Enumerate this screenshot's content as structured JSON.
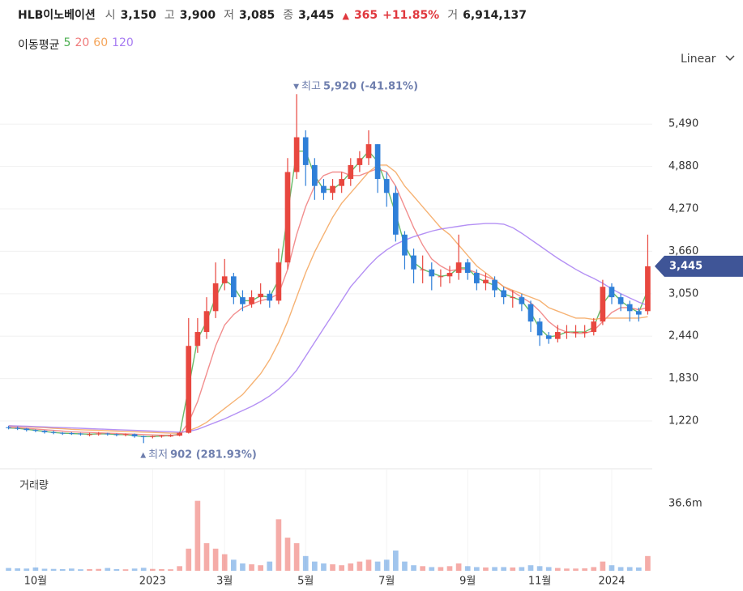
{
  "header": {
    "name": "HLB이노베이션",
    "items": [
      {
        "label": "시",
        "value": "3,150"
      },
      {
        "label": "고",
        "value": "3,900"
      },
      {
        "label": "저",
        "value": "3,085"
      },
      {
        "label": "종",
        "value": "3,445"
      }
    ],
    "change": {
      "arrow": "▲",
      "amount": "365",
      "percent": "+11.85%"
    },
    "volume": {
      "label": "거",
      "value": "6,914,137"
    }
  },
  "chart_data": {
    "type": "candlestick",
    "scale_label": "Linear",
    "ma_title": "이동평균",
    "categories": [
      null,
      null,
      null,
      "10월",
      null,
      null,
      null,
      null,
      null,
      null,
      null,
      null,
      null,
      null,
      null,
      null,
      "2023",
      null,
      null,
      null,
      null,
      null,
      null,
      null,
      "3월",
      null,
      null,
      null,
      null,
      null,
      null,
      null,
      null,
      "5월",
      null,
      null,
      null,
      null,
      null,
      null,
      null,
      null,
      "7월",
      null,
      null,
      null,
      null,
      null,
      null,
      null,
      null,
      "9월",
      null,
      null,
      null,
      null,
      null,
      null,
      null,
      "11월",
      null,
      null,
      null,
      null,
      null,
      null,
      null,
      "2024",
      null,
      null,
      null,
      null
    ],
    "open": [
      1130,
      1120,
      1110,
      1090,
      1080,
      1060,
      1050,
      1045,
      1040,
      1030,
      1030,
      1040,
      1030,
      1020,
      1030,
      1000,
      990,
      1000,
      1010,
      1010,
      1050,
      2300,
      2500,
      2800,
      3200,
      3300,
      3000,
      2900,
      3000,
      3050,
      2950,
      3500,
      4800,
      5300,
      4900,
      4600,
      4500,
      4600,
      4700,
      4900,
      5000,
      5200,
      4700,
      4500,
      3900,
      3600,
      3400,
      3400,
      3300,
      3300,
      3350,
      3500,
      3350,
      3200,
      3250,
      3100,
      3000,
      3000,
      2900,
      2650,
      2450,
      2400,
      2500,
      2500,
      2500,
      2500,
      2650,
      3150,
      3000,
      2900,
      2800,
      2800
    ],
    "high": [
      1150,
      1140,
      1120,
      1100,
      1090,
      1080,
      1060,
      1060,
      1050,
      1050,
      1060,
      1050,
      1040,
      1040,
      1040,
      1010,
      1010,
      1020,
      1030,
      1060,
      2700,
      2700,
      3000,
      3500,
      3550,
      3350,
      3100,
      3100,
      3200,
      3100,
      3700,
      5000,
      5920,
      5400,
      5000,
      4700,
      4700,
      4800,
      5000,
      5100,
      5400,
      5200,
      4800,
      4600,
      3950,
      3700,
      3600,
      3500,
      3400,
      3450,
      3900,
      3550,
      3400,
      3350,
      3300,
      3150,
      3100,
      3050,
      2950,
      2700,
      2500,
      2600,
      2600,
      2600,
      2600,
      2700,
      3250,
      3200,
      3050,
      2950,
      2850,
      3900
    ],
    "low": [
      1100,
      1090,
      1070,
      1060,
      1040,
      1030,
      1020,
      1020,
      1010,
      1000,
      1010,
      1010,
      1000,
      1000,
      980,
      902,
      970,
      980,
      990,
      1000,
      1040,
      2200,
      2400,
      2700,
      3100,
      2900,
      2800,
      2850,
      2900,
      2850,
      2900,
      3400,
      4700,
      4600,
      4400,
      4400,
      4400,
      4500,
      4600,
      4800,
      4900,
      4500,
      4300,
      3800,
      3400,
      3200,
      3200,
      3100,
      3150,
      3200,
      3250,
      3250,
      3100,
      3100,
      3000,
      2900,
      2850,
      2800,
      2500,
      2300,
      2330,
      2350,
      2400,
      2420,
      2420,
      2450,
      2600,
      2900,
      2800,
      2650,
      2650,
      2750
    ],
    "close": [
      1120,
      1110,
      1090,
      1080,
      1060,
      1050,
      1040,
      1040,
      1030,
      1030,
      1040,
      1030,
      1020,
      1030,
      1000,
      990,
      1000,
      1010,
      1010,
      1050,
      2300,
      2500,
      2800,
      3200,
      3300,
      3000,
      2900,
      3000,
      3050,
      2950,
      3500,
      4800,
      5300,
      4900,
      4600,
      4500,
      4600,
      4700,
      4900,
      5000,
      5200,
      4700,
      4500,
      3900,
      3600,
      3400,
      3400,
      3300,
      3300,
      3350,
      3500,
      3350,
      3200,
      3250,
      3100,
      3000,
      3000,
      2900,
      2650,
      2450,
      2400,
      2500,
      2500,
      2500,
      2500,
      2650,
      3150,
      3000,
      2900,
      2800,
      2750,
      3445
    ],
    "up_color": "#e8473f",
    "down_color": "#2f7fd8",
    "series": [
      {
        "name": "5",
        "color": "#4caf50",
        "values": [
          1120,
          1115,
          1100,
          1085,
          1070,
          1055,
          1045,
          1040,
          1035,
          1030,
          1035,
          1035,
          1025,
          1025,
          1010,
          995,
          995,
          1005,
          1010,
          1030,
          1700,
          2400,
          2650,
          3000,
          3250,
          3150,
          2950,
          2950,
          3020,
          3000,
          3250,
          4200,
          5100,
          5100,
          4750,
          4550,
          4550,
          4650,
          4800,
          4950,
          5100,
          4950,
          4600,
          4200,
          3750,
          3500,
          3400,
          3350,
          3300,
          3320,
          3420,
          3420,
          3280,
          3220,
          3170,
          3050,
          3000,
          2950,
          2780,
          2550,
          2430,
          2450,
          2500,
          2500,
          2500,
          2570,
          2900,
          3080,
          2950,
          2850,
          2780,
          3100
        ]
      },
      {
        "name": "20",
        "color": "#f07a7a",
        "values": [
          1130,
          1125,
          1115,
          1105,
          1095,
          1085,
          1075,
          1065,
          1060,
          1055,
          1050,
          1045,
          1040,
          1035,
          1030,
          1025,
          1020,
          1015,
          1015,
          1020,
          1200,
          1500,
          1900,
          2300,
          2600,
          2750,
          2850,
          2900,
          2950,
          2980,
          3050,
          3400,
          3900,
          4300,
          4600,
          4750,
          4800,
          4800,
          4750,
          4750,
          4800,
          4850,
          4800,
          4600,
          4300,
          4000,
          3750,
          3550,
          3450,
          3380,
          3400,
          3400,
          3350,
          3300,
          3250,
          3150,
          3080,
          3000,
          2920,
          2800,
          2650,
          2550,
          2500,
          2480,
          2480,
          2520,
          2650,
          2780,
          2850,
          2850,
          2820,
          2850
        ]
      },
      {
        "name": "60",
        "color": "#f5a55a",
        "values": [
          1150,
          1145,
          1140,
          1130,
          1125,
          1115,
          1110,
          1100,
          1095,
          1090,
          1085,
          1080,
          1075,
          1070,
          1065,
          1060,
          1055,
          1050,
          1045,
          1045,
          1080,
          1130,
          1200,
          1300,
          1400,
          1500,
          1600,
          1750,
          1900,
          2100,
          2350,
          2650,
          3000,
          3350,
          3650,
          3900,
          4150,
          4350,
          4500,
          4650,
          4800,
          4900,
          4900,
          4800,
          4600,
          4450,
          4300,
          4150,
          4000,
          3900,
          3750,
          3600,
          3450,
          3350,
          3250,
          3150,
          3100,
          3050,
          3000,
          2950,
          2850,
          2800,
          2750,
          2700,
          2700,
          2680,
          2700,
          2700,
          2700,
          2700,
          2700,
          2720
        ]
      },
      {
        "name": "120",
        "color": "#a77cf2",
        "values": [
          1150,
          1148,
          1145,
          1140,
          1135,
          1130,
          1125,
          1120,
          1115,
          1110,
          1105,
          1100,
          1095,
          1090,
          1085,
          1080,
          1075,
          1070,
          1065,
          1060,
          1070,
          1100,
          1150,
          1200,
          1250,
          1310,
          1370,
          1430,
          1500,
          1580,
          1680,
          1800,
          1950,
          2150,
          2350,
          2550,
          2750,
          2950,
          3150,
          3300,
          3450,
          3580,
          3680,
          3760,
          3820,
          3870,
          3910,
          3950,
          3980,
          4000,
          4020,
          4040,
          4050,
          4060,
          4060,
          4050,
          4000,
          3920,
          3830,
          3740,
          3650,
          3560,
          3480,
          3400,
          3330,
          3270,
          3200,
          3120,
          3050,
          2990,
          2930,
          2880
        ]
      }
    ],
    "ylim": [
      580,
      6284
    ],
    "yticks": [
      {
        "value": 1220,
        "label": "1,220"
      },
      {
        "value": 1830,
        "label": "1,830"
      },
      {
        "value": 2440,
        "label": "2,440"
      },
      {
        "value": 3050,
        "label": "3,050"
      },
      {
        "value": 3660,
        "label": "3,660"
      },
      {
        "value": 4270,
        "label": "4,270"
      },
      {
        "value": 4880,
        "label": "4,880"
      },
      {
        "value": 5490,
        "label": "5,490"
      }
    ],
    "grid": true,
    "last_price_label": "3,445",
    "annotations": [
      {
        "arrow": "▼",
        "label": "최고",
        "text": "5,920 (-41.81%)"
      },
      {
        "arrow": "▲",
        "label": "최저",
        "text": "902 (281.93%)"
      }
    ],
    "volume": {
      "label": "거래량",
      "values": [
        1500000,
        1300000,
        1200000,
        1800000,
        1100000,
        1000000,
        900000,
        1200000,
        800000,
        900000,
        1000000,
        1500000,
        900000,
        800000,
        1200000,
        1600000,
        1000000,
        900000,
        800000,
        2500000,
        12000000,
        38000000,
        15000000,
        12000000,
        9000000,
        6000000,
        4000000,
        3500000,
        3000000,
        5000000,
        28000000,
        18000000,
        15000000,
        8000000,
        5000000,
        4000000,
        3500000,
        3000000,
        4000000,
        5000000,
        6000000,
        5000000,
        6000000,
        11000000,
        5000000,
        3000000,
        2500000,
        2000000,
        2000000,
        2500000,
        4000000,
        2500000,
        2000000,
        1800000,
        2000000,
        2000000,
        1800000,
        2000000,
        3000000,
        2500000,
        2000000,
        1500000,
        1200000,
        1200000,
        1300000,
        2000000,
        5000000,
        3000000,
        2000000,
        2000000,
        1800000,
        8000000
      ],
      "ylim": [
        0,
        55000000
      ],
      "yticks": [
        {
          "value": 36600000,
          "label": "36.6m"
        }
      ]
    }
  }
}
